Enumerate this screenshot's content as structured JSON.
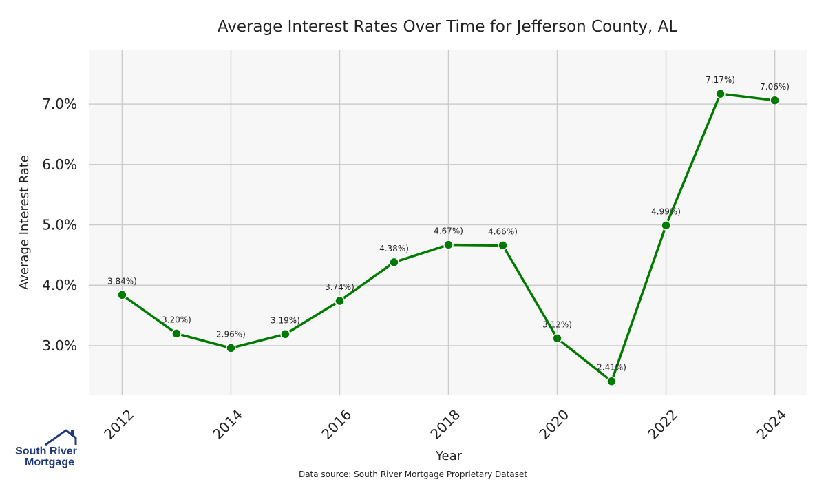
{
  "colors": {
    "line": "#007a00",
    "plot_bg": "#f7f7f7",
    "grid": "#cccccc",
    "logo_navy": "#1f3a7a"
  },
  "chart_data": {
    "type": "line",
    "title": "Average Interest Rates Over Time for Jefferson County, AL",
    "xlabel": "Year",
    "ylabel": "Average Interest Rate",
    "x": [
      2012,
      2013,
      2014,
      2015,
      2016,
      2017,
      2018,
      2019,
      2020,
      2021,
      2022,
      2023,
      2024
    ],
    "series": [
      {
        "values": [
          3.84,
          3.2,
          2.96,
          3.19,
          3.74,
          4.38,
          4.67,
          4.66,
          3.12,
          2.41,
          4.99,
          7.17,
          7.06
        ],
        "point_labels": [
          "3.84%)",
          "3.20%)",
          "2.96%)",
          "3.19%)",
          "3.74%)",
          "4.38%)",
          "4.67%)",
          "4.66%)",
          "3.12%)",
          "2.41%)",
          "4.99%)",
          "7.17%)",
          "7.06%)"
        ]
      }
    ],
    "x_ticks": [
      2012,
      2014,
      2016,
      2018,
      2020,
      2022,
      2024
    ],
    "y_ticks": [
      3.0,
      4.0,
      5.0,
      6.0,
      7.0
    ],
    "y_tick_labels": [
      "3.0%",
      "4.0%",
      "5.0%",
      "6.0%",
      "7.0%"
    ],
    "xlim": [
      2011.4,
      2024.6
    ],
    "ylim": [
      2.19,
      7.89
    ],
    "grid": true,
    "markers": "circle"
  },
  "source_note": "Data source: South River Mortgage Proprietary Dataset",
  "logo": {
    "line1": "South River",
    "line2": "Mortgage"
  }
}
